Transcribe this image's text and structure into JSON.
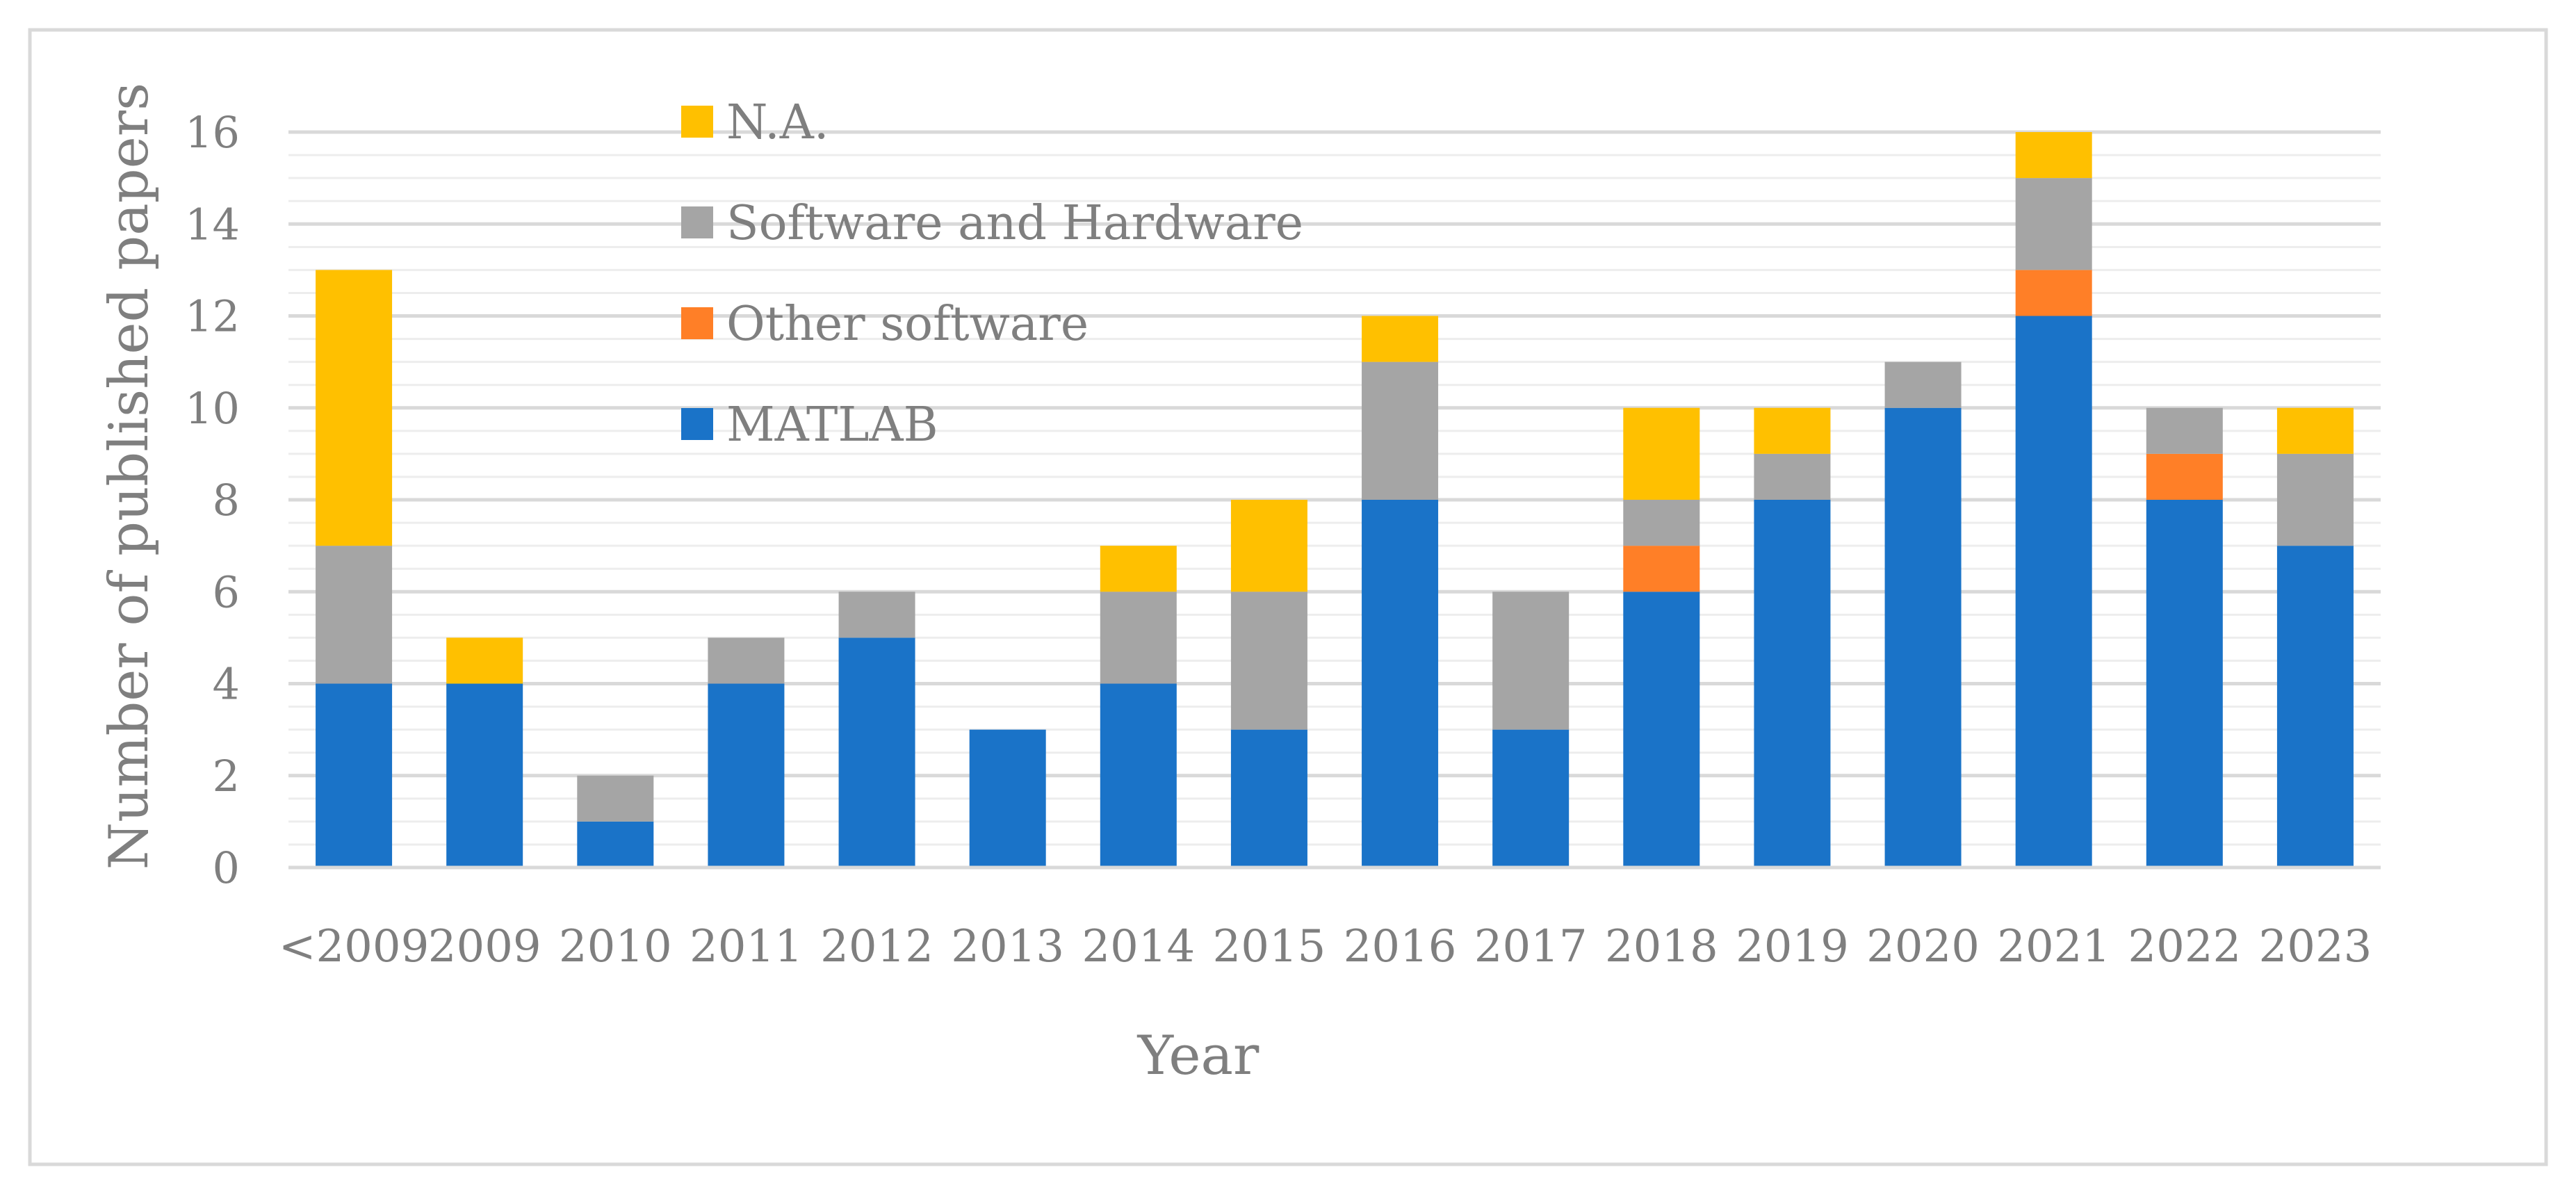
{
  "chart_data": {
    "type": "bar",
    "stacked": true,
    "title": "",
    "xlabel": "Year",
    "ylabel": "Number of published papers",
    "ylim": [
      0,
      16
    ],
    "yticks": [
      0,
      2,
      4,
      6,
      8,
      10,
      12,
      14,
      16
    ],
    "minor_gridlines": true,
    "legend_position": "top-left inside plot",
    "categories": [
      "<2009",
      "2009",
      "2010",
      "2011",
      "2012",
      "2013",
      "2014",
      "2015",
      "2016",
      "2017",
      "2018",
      "2019",
      "2020",
      "2021",
      "2022",
      "2023"
    ],
    "series": [
      {
        "name": "MATLAB",
        "color": "#1a73c8",
        "values": [
          4,
          4,
          1,
          4,
          5,
          3,
          4,
          3,
          8,
          3,
          6,
          8,
          10,
          12,
          8,
          7
        ]
      },
      {
        "name": "Other software",
        "color": "#ff7f27",
        "values": [
          0,
          0,
          0,
          0,
          0,
          0,
          0,
          0,
          0,
          0,
          1,
          0,
          0,
          1,
          1,
          0
        ]
      },
      {
        "name": "Software and Hardware",
        "color": "#a5a5a5",
        "values": [
          3,
          0,
          1,
          1,
          1,
          0,
          2,
          3,
          3,
          3,
          1,
          1,
          1,
          2,
          1,
          2
        ]
      },
      {
        "name": "N.A.",
        "color": "#ffc000",
        "values": [
          6,
          1,
          0,
          0,
          0,
          0,
          1,
          2,
          1,
          0,
          2,
          1,
          0,
          1,
          0,
          1
        ]
      }
    ],
    "legend_order": [
      "N.A.",
      "Software and Hardware",
      "Other software",
      "MATLAB"
    ],
    "colors": {
      "text": "#7f7f7f",
      "gridline": "#d9d9d9",
      "minor_gridline": "#ededed",
      "frame": "#d9d9d9"
    }
  }
}
